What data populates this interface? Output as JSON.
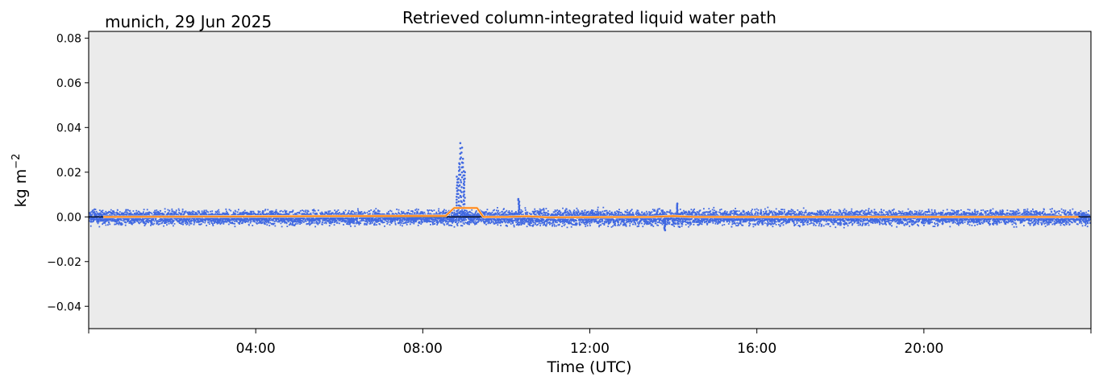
{
  "chart_data": {
    "type": "scatter",
    "title": "Retrieved column-integrated liquid water path",
    "subtitle": "munich, 29 Jun 2025",
    "xlabel": "Time (UTC)",
    "ylabel": "kg m",
    "ylabel_superscript": "−2",
    "xlim": [
      0,
      24
    ],
    "ylim": [
      -0.05,
      0.083
    ],
    "x_ticks": [
      {
        "value": 0,
        "label": ""
      },
      {
        "value": 4,
        "label": "04:00"
      },
      {
        "value": 8,
        "label": "08:00"
      },
      {
        "value": 12,
        "label": "12:00"
      },
      {
        "value": 16,
        "label": "16:00"
      },
      {
        "value": 20,
        "label": "20:00"
      },
      {
        "value": 24,
        "label": ""
      }
    ],
    "y_ticks": [
      {
        "value": 0.08,
        "label": "0.08"
      },
      {
        "value": 0.06,
        "label": "0.06"
      },
      {
        "value": 0.04,
        "label": "0.04"
      },
      {
        "value": 0.02,
        "label": "0.02"
      },
      {
        "value": 0.0,
        "label": "0.00"
      },
      {
        "value": -0.02,
        "label": "−0.02"
      },
      {
        "value": -0.04,
        "label": "−0.04"
      }
    ],
    "grid": false,
    "background": "#ebebeb",
    "reference_line": {
      "y": 0.0,
      "color": "#000000"
    },
    "series": [
      {
        "kind": "scatter",
        "color": "#4169e1",
        "noise_envelope": [
          {
            "x": 0.0,
            "spread": 0.0045
          },
          {
            "x": 8.5,
            "spread": 0.0045
          },
          {
            "x": 9.4,
            "spread": 0.0045
          },
          {
            "x": 10.5,
            "spread": 0.005
          },
          {
            "x": 24.0,
            "spread": 0.0045
          }
        ],
        "spikes": [
          {
            "x": 8.82,
            "y": 0.018
          },
          {
            "x": 8.86,
            "y": 0.024
          },
          {
            "x": 8.9,
            "y": 0.033
          },
          {
            "x": 8.93,
            "y": 0.031
          },
          {
            "x": 8.97,
            "y": 0.026
          },
          {
            "x": 9.0,
            "y": 0.02
          },
          {
            "x": 10.3,
            "y": 0.008
          },
          {
            "x": 13.8,
            "y": -0.006
          },
          {
            "x": 14.1,
            "y": 0.006
          }
        ]
      },
      {
        "kind": "line",
        "color": "#ff7f0e",
        "edge_color": "#ffd8a8",
        "points": [
          [
            0.35,
            0.0
          ],
          [
            8.55,
            0.0005
          ],
          [
            8.75,
            0.004
          ],
          [
            9.3,
            0.004
          ],
          [
            9.45,
            0.0
          ],
          [
            10.0,
            0.0
          ],
          [
            10.5,
            0.0003
          ],
          [
            11.0,
            -0.0002
          ],
          [
            13.5,
            0.0
          ],
          [
            14.0,
            0.0004
          ],
          [
            14.5,
            0.0
          ],
          [
            23.7,
            0.0
          ]
        ]
      }
    ]
  }
}
